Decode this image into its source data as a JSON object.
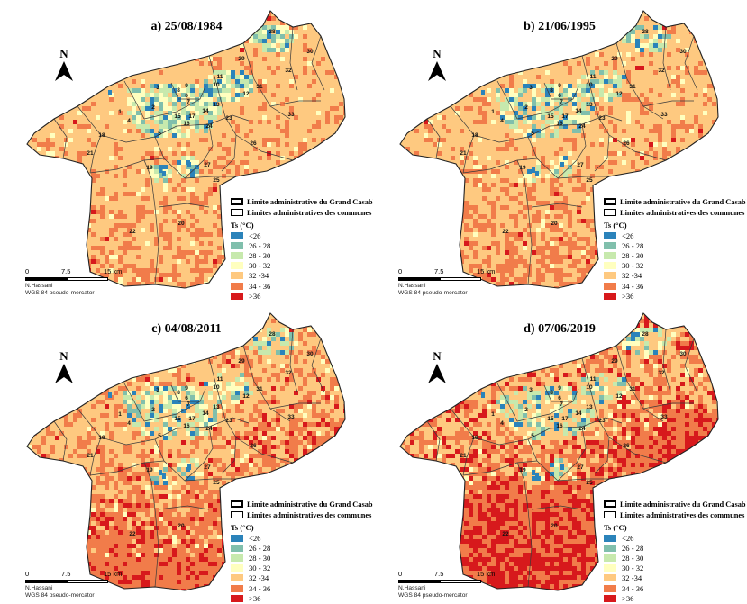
{
  "panels": [
    {
      "title": "a) 25/08/1984",
      "hot": 0.05,
      "veryhot": 0.01,
      "cool": 0.28
    },
    {
      "title": "b) 21/06/1995",
      "hot": 0.1,
      "veryhot": 0.02,
      "cool": 0.24
    },
    {
      "title": "c) 04/08/2011",
      "hot": 0.35,
      "veryhot": 0.12,
      "cool": 0.2
    },
    {
      "title": "d) 07/06/2019",
      "hot": 0.45,
      "veryhot": 0.4,
      "cool": 0.16
    }
  ],
  "north_label": "N",
  "legend": {
    "boundary_grand": "Limite administrative du Grand Casablanca",
    "boundary_communes": "Limites administratives des communes",
    "title": "Ts (°C)",
    "classes": [
      {
        "label": "<26",
        "color": "#2b83ba"
      },
      {
        "label": "26 - 28",
        "color": "#80bfac"
      },
      {
        "label": "28 - 30",
        "color": "#c7e9ad"
      },
      {
        "label": "30 - 32",
        "color": "#ffffbf"
      },
      {
        "label": "32 -34",
        "color": "#fec980"
      },
      {
        "label": "34 - 36",
        "color": "#f17c4a"
      },
      {
        "label": ">36",
        "color": "#d7191c"
      }
    ]
  },
  "scale": {
    "t0": "0",
    "t1": "7.5",
    "t2": "15 km",
    "author": "N.Hassani",
    "crs": "WGS 84 pseudo-mercator"
  },
  "communes": [
    "1",
    "2",
    "3",
    "4",
    "5",
    "6",
    "7",
    "8",
    "9",
    "10",
    "11",
    "12",
    "13",
    "14",
    "15",
    "16",
    "17",
    "18",
    "19",
    "20",
    "21",
    "22",
    "23",
    "24",
    "25",
    "26",
    "27",
    "28",
    "29",
    "30",
    "31",
    "32",
    "33"
  ]
}
